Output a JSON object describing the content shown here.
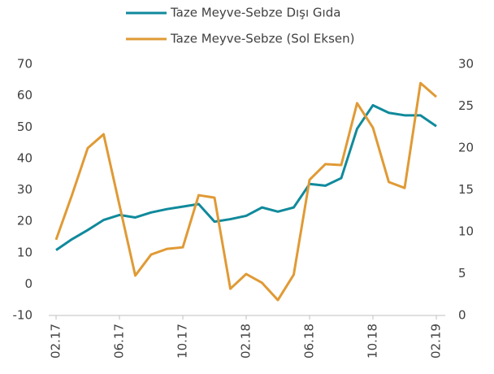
{
  "chart_data": {
    "type": "line",
    "categories": [
      "02.17",
      null,
      null,
      null,
      "06.17",
      null,
      null,
      null,
      "10.17",
      null,
      null,
      null,
      "02.18",
      null,
      null,
      null,
      "06.18",
      null,
      null,
      null,
      "10.18",
      null,
      null,
      null,
      "02.19"
    ],
    "series": [
      {
        "name": "Taze Meyve-Sebze Dışı Gıda",
        "color": "#108a9c",
        "axis": "y2",
        "values": [
          7.8,
          9.1,
          10.2,
          11.4,
          12.0,
          11.7,
          12.3,
          12.7,
          13.0,
          13.3,
          11.2,
          11.5,
          11.9,
          12.9,
          12.4,
          12.9,
          15.7,
          15.5,
          16.4,
          22.3,
          25.1,
          24.2,
          23.9,
          23.9,
          22.6
        ]
      },
      {
        "name": "Taze Meyve-Sebze (Sol Eksen)",
        "color": "#e09a35",
        "values": [
          14.1,
          28.3,
          43.3,
          47.7,
          25.2,
          2.7,
          9.4,
          11.2,
          11.7,
          28.3,
          27.5,
          -1.5,
          3.2,
          0.4,
          -5.1,
          3.0,
          33.2,
          38.2,
          37.9,
          57.6,
          49.8,
          32.5,
          30.6,
          64.0,
          59.6
        ]
      }
    ],
    "ylim": [
      -10,
      70
    ],
    "yticks": [
      -10,
      0,
      10,
      20,
      30,
      40,
      50,
      60,
      70
    ],
    "y2lim": [
      0,
      30
    ],
    "y2ticks": [
      0,
      5,
      10,
      15,
      20,
      25,
      30
    ],
    "grid": false
  }
}
